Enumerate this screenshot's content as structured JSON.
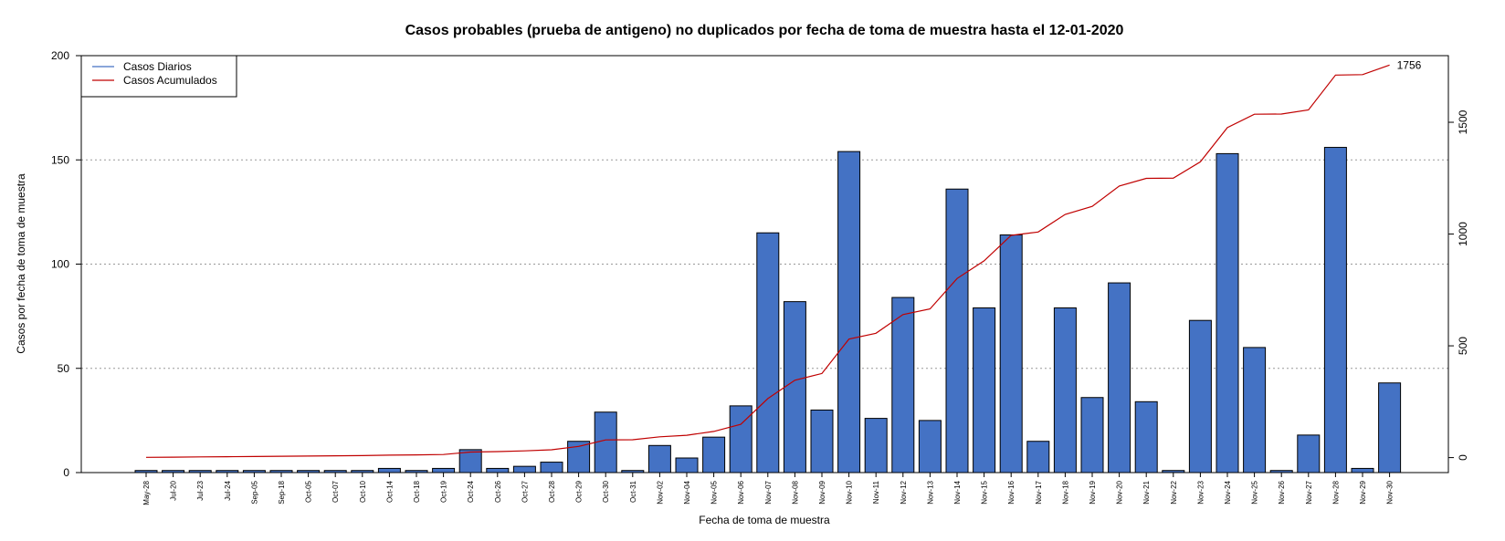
{
  "chart_data": {
    "type": "bar",
    "title": "Casos probables (prueba de antigeno) no duplicados por fecha de toma de muestra hasta el 12-01-2020",
    "xlabel": "Fecha de toma de muestra",
    "ylabel": "Casos por fecha de toma de muestra",
    "ylim": [
      0,
      200
    ],
    "y_ticks": [
      0,
      50,
      100,
      150,
      200
    ],
    "y2lim": [
      -67,
      1798
    ],
    "y2_ticks": [
      0,
      500,
      1000,
      1500
    ],
    "grid": "horizontal dotted",
    "legend_position": "top-left",
    "categories": [
      "May-28",
      "Jul-20",
      "Jul-23",
      "Jul-24",
      "Sep-05",
      "Sep-18",
      "Oct-05",
      "Oct-07",
      "Oct-10",
      "Oct-14",
      "Oct-18",
      "Oct-19",
      "Oct-24",
      "Oct-26",
      "Oct-27",
      "Oct-28",
      "Oct-29",
      "Oct-30",
      "Oct-31",
      "Nov-02",
      "Nov-04",
      "Nov-05",
      "Nov-06",
      "Nov-07",
      "Nov-08",
      "Nov-09",
      "Nov-10",
      "Nov-11",
      "Nov-12",
      "Nov-13",
      "Nov-14",
      "Nov-15",
      "Nov-16",
      "Nov-17",
      "Nov-18",
      "Nov-19",
      "Nov-20",
      "Nov-21",
      "Nov-22",
      "Nov-23",
      "Nov-24",
      "Nov-25",
      "Nov-26",
      "Nov-27",
      "Nov-28",
      "Nov-29",
      "Nov-30"
    ],
    "series": [
      {
        "name": "Casos Diarios",
        "axis": "left",
        "render": "bar",
        "color": "#4472C4",
        "values": [
          1,
          1,
          1,
          1,
          1,
          1,
          1,
          1,
          1,
          2,
          1,
          2,
          11,
          2,
          3,
          5,
          15,
          29,
          1,
          13,
          7,
          17,
          32,
          115,
          82,
          30,
          154,
          26,
          84,
          25,
          136,
          79,
          114,
          15,
          79,
          36,
          91,
          34,
          1,
          73,
          153,
          60,
          1,
          18,
          156,
          2,
          43
        ]
      },
      {
        "name": "Casos Acumulados",
        "axis": "right",
        "render": "line",
        "color": "#C00000",
        "values": [
          1,
          2,
          3,
          4,
          5,
          6,
          7,
          8,
          9,
          11,
          12,
          14,
          25,
          27,
          30,
          35,
          50,
          79,
          80,
          93,
          100,
          117,
          149,
          264,
          346,
          376,
          530,
          556,
          640,
          665,
          801,
          880,
          994,
          1009,
          1088,
          1124,
          1215,
          1249,
          1250,
          1323,
          1476,
          1536,
          1537,
          1555,
          1711,
          1713,
          1756
        ]
      }
    ],
    "end_label": "1756"
  }
}
